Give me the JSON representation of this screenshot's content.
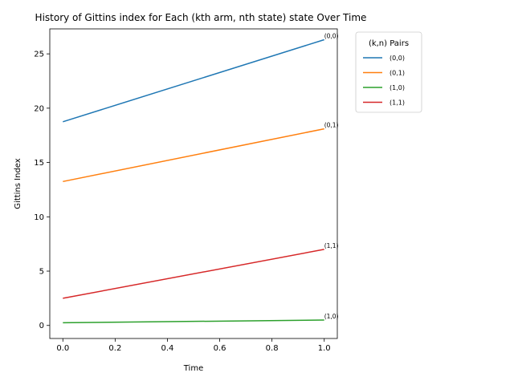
{
  "chart_data": {
    "type": "line",
    "title": "History of Gittins index for Each (kth arm, nth state) state Over Time",
    "xlabel": "Time",
    "ylabel": "Gittins Index",
    "xlim": [
      -0.05,
      1.05
    ],
    "ylim": [
      -1.2,
      27.3
    ],
    "xticks": [
      {
        "value": 0.0,
        "label": "0.0"
      },
      {
        "value": 0.2,
        "label": "0.2"
      },
      {
        "value": 0.4,
        "label": "0.4"
      },
      {
        "value": 0.6,
        "label": "0.6"
      },
      {
        "value": 0.8,
        "label": "0.8"
      },
      {
        "value": 1.0,
        "label": "1.0"
      }
    ],
    "yticks": [
      {
        "value": 0,
        "label": "0"
      },
      {
        "value": 5,
        "label": "5"
      },
      {
        "value": 10,
        "label": "10"
      },
      {
        "value": 15,
        "label": "15"
      },
      {
        "value": 20,
        "label": "20"
      },
      {
        "value": 25,
        "label": "25"
      }
    ],
    "grid": false,
    "legend": {
      "title": "(k,n) Pairs",
      "placement": "outside-right-top"
    },
    "x": [
      0,
      1
    ],
    "series": [
      {
        "name": "(0,0)",
        "color": "#1f77b4",
        "values": [
          18.75,
          26.3
        ],
        "end_label": "(0,0)"
      },
      {
        "name": "(0,1)",
        "color": "#ff7f0e",
        "values": [
          13.25,
          18.1
        ],
        "end_label": "(0,1)"
      },
      {
        "name": "(1,0)",
        "color": "#2ca02c",
        "values": [
          0.25,
          0.5
        ],
        "end_label": "(1,0)"
      },
      {
        "name": "(1,1)",
        "color": "#d62728",
        "values": [
          2.5,
          7.0
        ],
        "end_label": "(1,1)"
      }
    ]
  }
}
